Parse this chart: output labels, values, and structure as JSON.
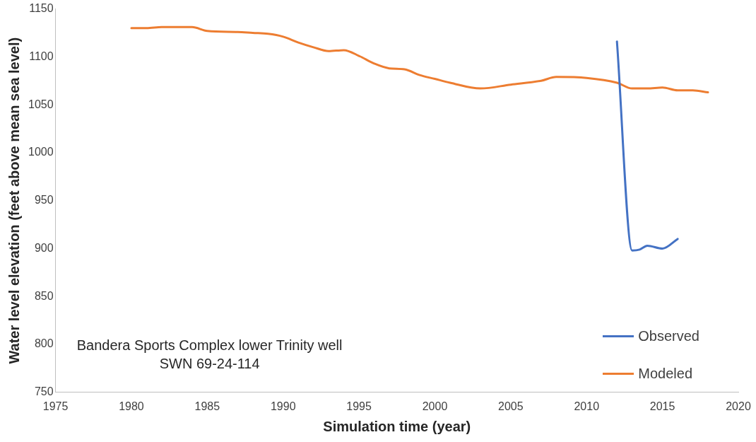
{
  "chart_data": {
    "type": "line",
    "xlabel": "Simulation time (year)",
    "ylabel": "Water level elevation (feet above mean sea level)",
    "xlim": [
      1975,
      2020
    ],
    "xticks": [
      1975,
      1980,
      1985,
      1990,
      1995,
      2000,
      2005,
      2010,
      2015,
      2020
    ],
    "ylim": [
      750,
      1150
    ],
    "yticks": [
      750,
      800,
      850,
      900,
      950,
      1000,
      1050,
      1100,
      1150
    ],
    "grid": false,
    "legend": "bottom right",
    "marker": "none",
    "line_style": "solid",
    "annotations": [
      "Bandera Sports Complex lower Trinity well",
      "SWN 69-24-114"
    ],
    "series": [
      {
        "name": "Observed",
        "color": "#4472c4",
        "x": [
          2012,
          2013,
          2013.5,
          2014,
          2015,
          2016
        ],
        "values": [
          1116,
          898,
          899,
          903,
          900,
          910
        ]
      },
      {
        "name": "Modeled",
        "color": "#ed7d31",
        "x": [
          1980,
          1981,
          1982,
          1984,
          1985,
          1987,
          1988,
          1989,
          1990,
          1991,
          1992,
          1993,
          1994,
          1995,
          1996,
          1997,
          1998,
          1999,
          2000,
          2001,
          2003,
          2005,
          2007,
          2008,
          2010,
          2012,
          2013,
          2014,
          2015,
          2016,
          2017,
          2018
        ],
        "values": [
          1130,
          1130,
          1131,
          1131,
          1127,
          1126,
          1125,
          1124,
          1121,
          1115,
          1110,
          1106,
          1107,
          1101,
          1093,
          1088,
          1087,
          1081,
          1077,
          1073,
          1067,
          1071,
          1075,
          1079,
          1078,
          1073,
          1067,
          1067,
          1068,
          1065,
          1065,
          1063
        ]
      }
    ]
  }
}
